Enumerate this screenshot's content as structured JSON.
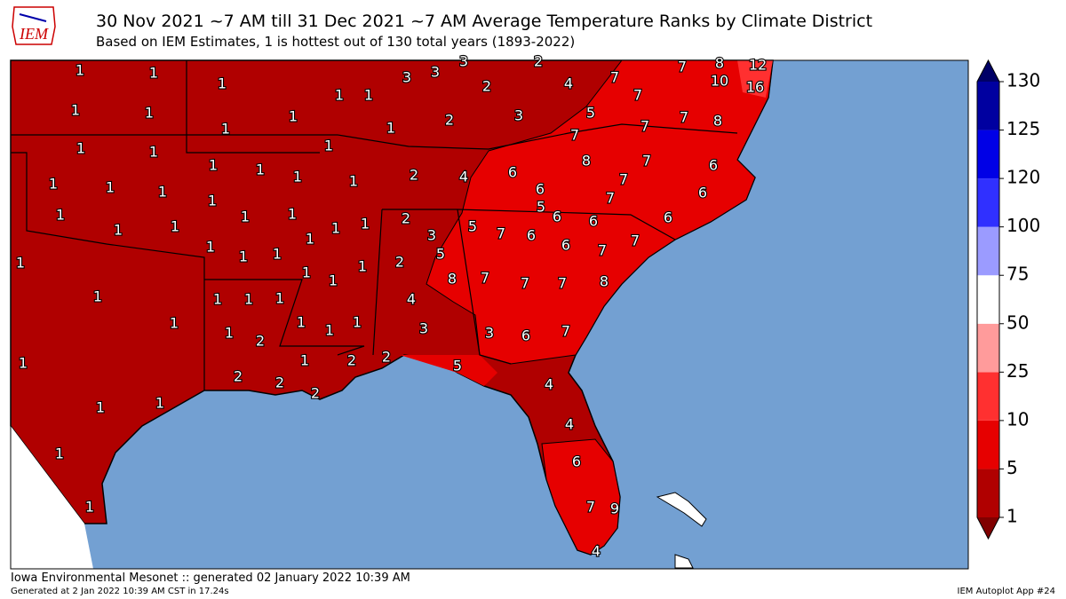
{
  "header": {
    "logo": "IEM",
    "title": "30 Nov 2021 ~7 AM till 31 Dec 2021 ~7 AM Average Temperature Ranks by Climate District",
    "subtitle": "Based on IEM Estimates, 1 is hottest out of 130 total years (1893-2022)"
  },
  "map": {
    "ocean_color": "#73a0d2",
    "district_ranks": [
      1,
      1,
      1,
      1,
      1,
      3,
      3,
      3,
      2,
      2,
      4,
      7,
      7,
      8,
      12,
      10,
      16,
      7,
      5,
      7,
      8,
      7,
      7,
      1,
      1,
      1,
      1,
      1,
      2,
      3,
      1,
      1,
      1,
      1,
      1,
      1,
      1,
      2,
      4,
      6,
      8,
      7,
      6,
      1,
      1,
      1,
      1,
      6,
      7,
      6,
      7,
      1,
      1,
      1,
      1,
      1,
      2,
      5,
      7,
      6,
      5,
      6,
      6,
      6,
      3,
      1,
      1,
      1,
      1,
      1,
      1,
      6,
      7,
      7,
      1,
      5,
      2,
      1,
      1,
      1,
      8,
      7,
      7,
      7,
      8,
      1,
      1,
      1,
      1,
      4,
      1,
      1,
      2,
      1,
      1,
      1,
      3,
      3,
      6,
      7,
      1,
      1,
      2,
      2,
      5,
      2,
      2,
      2,
      4,
      1,
      1,
      4,
      1,
      6,
      1,
      7,
      9,
      4
    ]
  },
  "colorbar": {
    "ticks": [
      1,
      5,
      10,
      25,
      50,
      75,
      100,
      120,
      125,
      130
    ],
    "colors": [
      "#b00000",
      "#e60000",
      "#ff3030",
      "#ff9b9b",
      "#ffffff",
      "#9b9bff",
      "#3030ff",
      "#0000e6",
      "#0000a0"
    ],
    "under_color": "#800000",
    "over_color": "#000066"
  },
  "footer": {
    "left": "Iowa Environmental Mesonet :: generated 02 January 2022 10:39 AM",
    "generated": "Generated at 2 Jan 2022 10:39 AM CST in 17.24s",
    "right": "IEM Autoplot App #24"
  }
}
